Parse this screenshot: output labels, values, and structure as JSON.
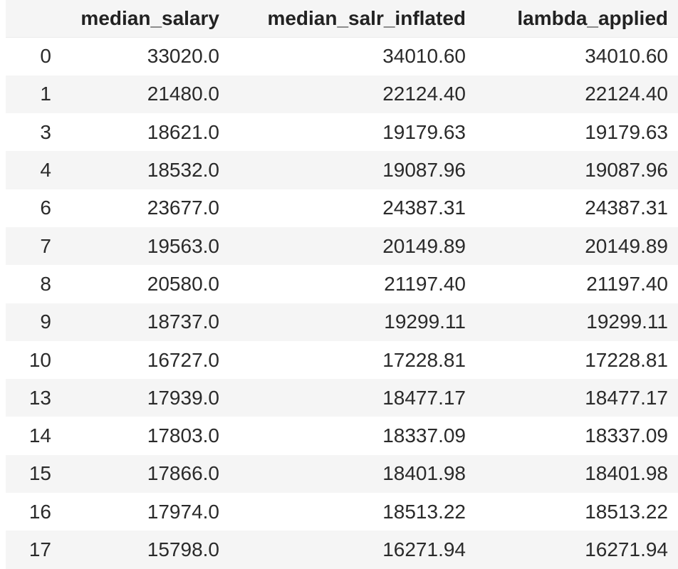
{
  "table": {
    "index_header": "",
    "columns": [
      "median_salary",
      "median_salr_inflated",
      "lambda_applied"
    ],
    "rows": [
      {
        "index": "0",
        "values": [
          "33020.0",
          "34010.60",
          "34010.60"
        ]
      },
      {
        "index": "1",
        "values": [
          "21480.0",
          "22124.40",
          "22124.40"
        ]
      },
      {
        "index": "3",
        "values": [
          "18621.0",
          "19179.63",
          "19179.63"
        ]
      },
      {
        "index": "4",
        "values": [
          "18532.0",
          "19087.96",
          "19087.96"
        ]
      },
      {
        "index": "6",
        "values": [
          "23677.0",
          "24387.31",
          "24387.31"
        ]
      },
      {
        "index": "7",
        "values": [
          "19563.0",
          "20149.89",
          "20149.89"
        ]
      },
      {
        "index": "8",
        "values": [
          "20580.0",
          "21197.40",
          "21197.40"
        ]
      },
      {
        "index": "9",
        "values": [
          "18737.0",
          "19299.11",
          "19299.11"
        ]
      },
      {
        "index": "10",
        "values": [
          "16727.0",
          "17228.81",
          "17228.81"
        ]
      },
      {
        "index": "13",
        "values": [
          "17939.0",
          "18477.17",
          "18477.17"
        ]
      },
      {
        "index": "14",
        "values": [
          "17803.0",
          "18337.09",
          "18337.09"
        ]
      },
      {
        "index": "15",
        "values": [
          "17866.0",
          "18401.98",
          "18401.98"
        ]
      },
      {
        "index": "16",
        "values": [
          "17974.0",
          "18513.22",
          "18513.22"
        ]
      },
      {
        "index": "17",
        "values": [
          "15798.0",
          "16271.94",
          "16271.94"
        ]
      }
    ]
  },
  "colors": {
    "header_bg": "#f5f5f5",
    "stripe_bg": "#f5f5f5",
    "row_bg": "#ffffff",
    "text": "#2a2a2a"
  }
}
